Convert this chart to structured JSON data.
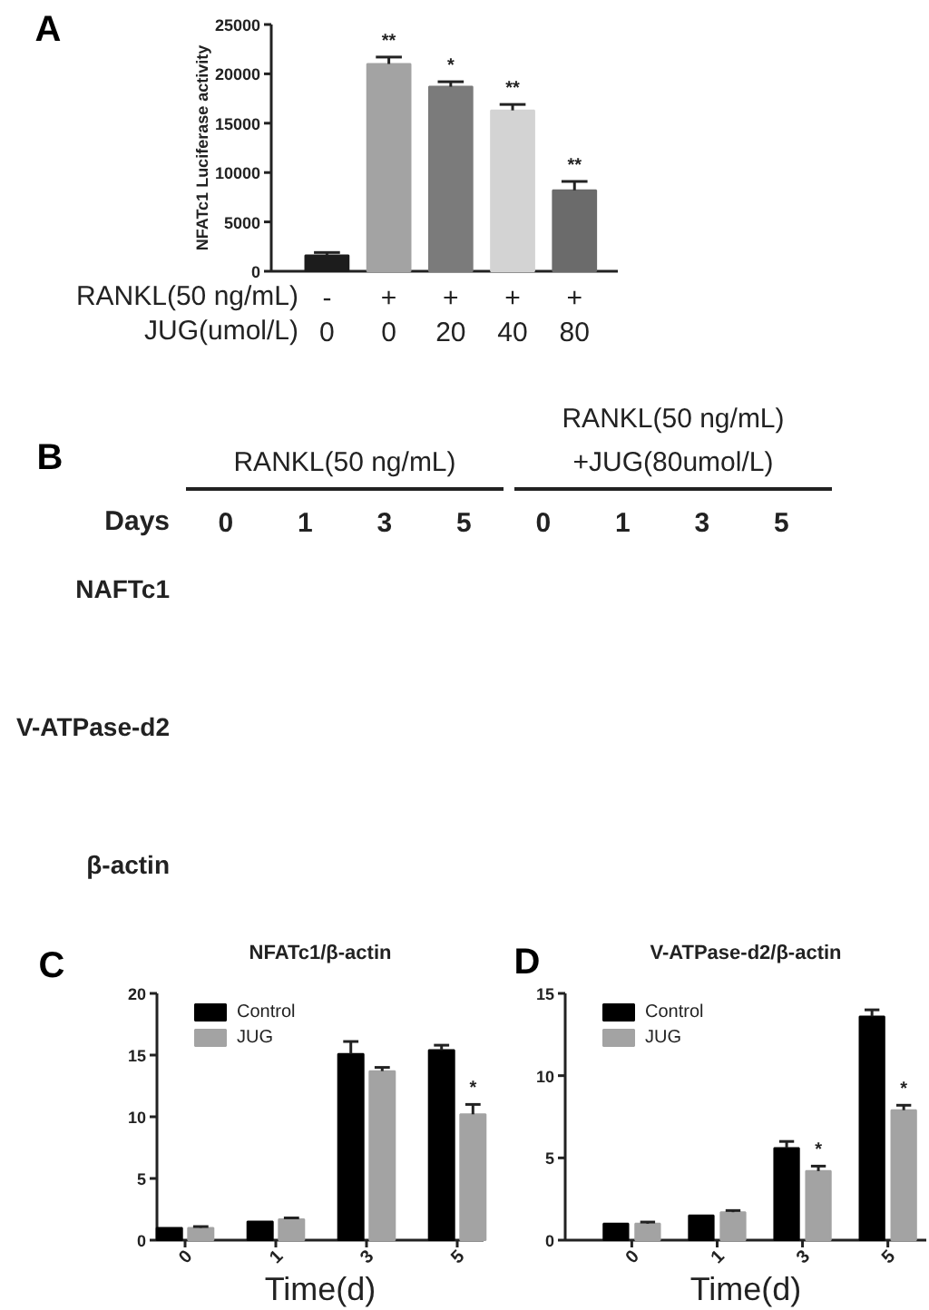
{
  "chart_data": [
    {
      "type": "bar",
      "ylabel": "NFATc1 Luciferase activity",
      "categories": [
        "-\n0",
        "+\n0",
        "+\n20",
        "+\n40",
        "+\n80"
      ],
      "values": [
        1600,
        21000,
        18700,
        16300,
        8200
      ],
      "colors": [
        "#1c1c1c",
        "#a3a3a3",
        "#7b7b7b",
        "#d3d3d3",
        "#6b6b6b"
      ],
      "errors": [
        [
          1600,
          1900
        ],
        [
          21000,
          21700
        ],
        [
          18700,
          19200
        ],
        [
          16300,
          16900
        ],
        [
          8200,
          9100
        ]
      ],
      "ylim": [
        0,
        25000
      ],
      "yticks": [
        0,
        5000,
        10000,
        15000,
        20000,
        25000
      ],
      "annotations": [
        "A",
        "RANKL(50 ng/mL)",
        "JUG(umol/L)",
        {
          "text": "**",
          "x": "+\n0",
          "y": 21700
        },
        {
          "text": "*",
          "x": "+\n20",
          "y": 19200
        },
        {
          "text": "**",
          "x": "+\n40",
          "y": 16900
        },
        {
          "text": "**",
          "x": "+\n80",
          "y": 9100
        }
      ]
    },
    {
      "type": "other",
      "xlabel": "Days",
      "categories": [
        "0",
        "1",
        "3",
        "5",
        "0",
        "1",
        "3",
        "5"
      ],
      "y_categories": [
        "NAFTc1",
        "V-ATPase-d2",
        "β-actin"
      ],
      "annotations": [
        "B",
        "RANKL(50 ng/mL)",
        "RANKL(50 ng/mL)\n+JUG(80umol/L)"
      ]
    },
    {
      "type": "bar",
      "title": "NFATc1/β-actin",
      "xlabel": "Time(d)",
      "categories": [
        "0",
        "1",
        "3",
        "5"
      ],
      "series": [
        {
          "name": "Control",
          "color": "#000000",
          "values": [
            1.0,
            1.5,
            15.1,
            15.4
          ],
          "errors": [
            null,
            null,
            [
              15.1,
              16.1
            ],
            [
              15.4,
              15.8
            ]
          ]
        },
        {
          "name": "JUG",
          "color": "#a3a3a3",
          "values": [
            1.0,
            1.7,
            13.7,
            10.2
          ],
          "errors": [
            [
              1.0,
              1.1
            ],
            [
              1.7,
              1.8
            ],
            [
              13.7,
              14.0
            ],
            [
              10.2,
              11.0
            ]
          ]
        }
      ],
      "ylim": [
        0,
        20
      ],
      "yticks": [
        0,
        5,
        10,
        15,
        20
      ],
      "legend": "top left",
      "annotations": [
        "C",
        {
          "text": "*",
          "x": "5",
          "y": 11.0
        }
      ]
    },
    {
      "type": "bar",
      "title": "V-ATPase-d2/β-actin",
      "xlabel": "Time(d)",
      "categories": [
        "0",
        "1",
        "3",
        "5"
      ],
      "series": [
        {
          "name": "Control",
          "color": "#000000",
          "values": [
            1.0,
            1.5,
            5.6,
            13.6
          ],
          "errors": [
            null,
            null,
            [
              5.6,
              6.0
            ],
            [
              13.6,
              14.0
            ]
          ]
        },
        {
          "name": "JUG",
          "color": "#a3a3a3",
          "values": [
            1.0,
            1.7,
            4.2,
            7.9
          ],
          "errors": [
            [
              1.0,
              1.1
            ],
            [
              1.7,
              1.8
            ],
            [
              4.2,
              4.5
            ],
            [
              7.9,
              8.2
            ]
          ]
        }
      ],
      "ylim": [
        0,
        15
      ],
      "yticks": [
        0,
        5,
        10,
        15
      ],
      "legend": "top left",
      "annotations": [
        "D",
        {
          "text": "*",
          "x": "3",
          "y": 4.5
        },
        {
          "text": "*",
          "x": "5",
          "y": 8.2
        }
      ]
    }
  ]
}
